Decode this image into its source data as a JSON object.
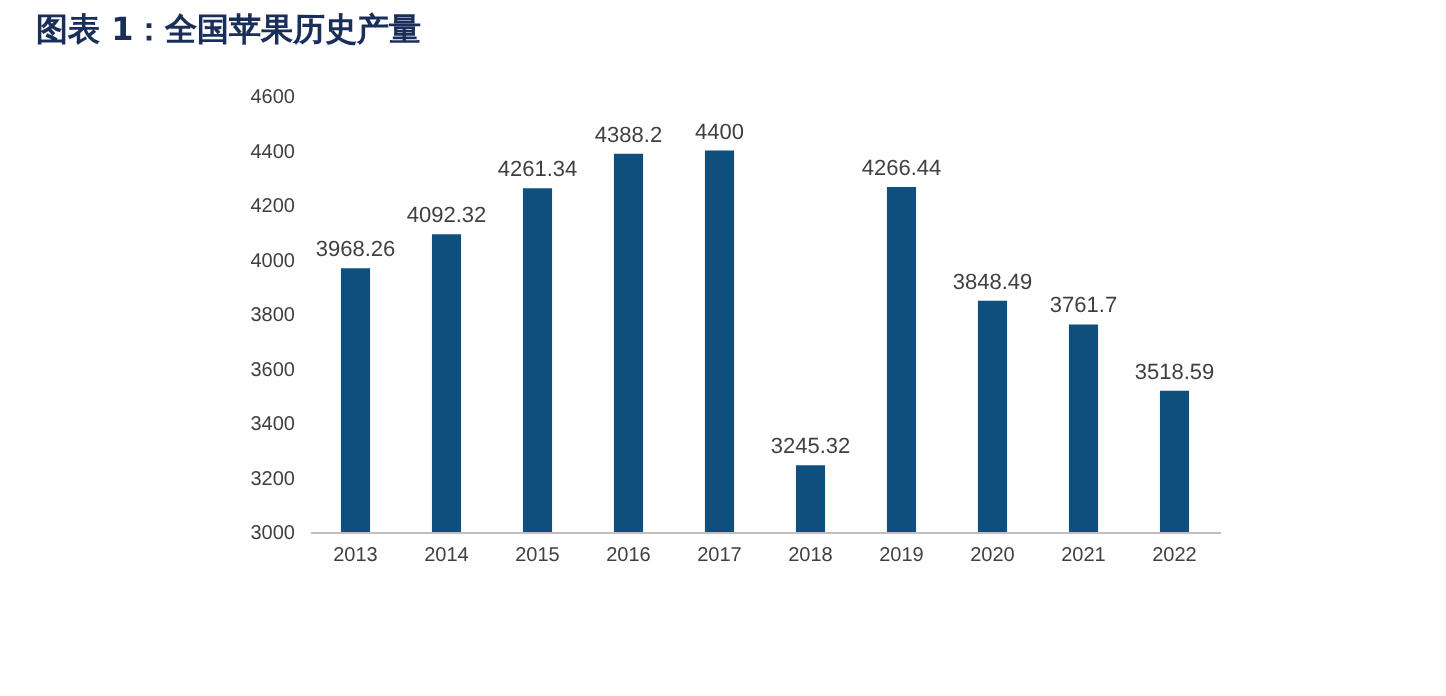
{
  "chart_data": {
    "type": "bar",
    "title": "图表 1：全国苹果历史产量",
    "categories": [
      "2013",
      "2014",
      "2015",
      "2016",
      "2017",
      "2018",
      "2019",
      "2020",
      "2021",
      "2022"
    ],
    "values": [
      3968.26,
      4092.32,
      4261.34,
      4388.2,
      4400,
      3245.32,
      4266.44,
      3848.49,
      3761.7,
      3518.59
    ],
    "color": "#0e4f7e",
    "data_labels": true,
    "grid": false,
    "ylim": [
      3000,
      4600
    ],
    "yticks": [
      3000,
      3200,
      3400,
      3600,
      3800,
      4000,
      4200,
      4400,
      4600
    ]
  }
}
